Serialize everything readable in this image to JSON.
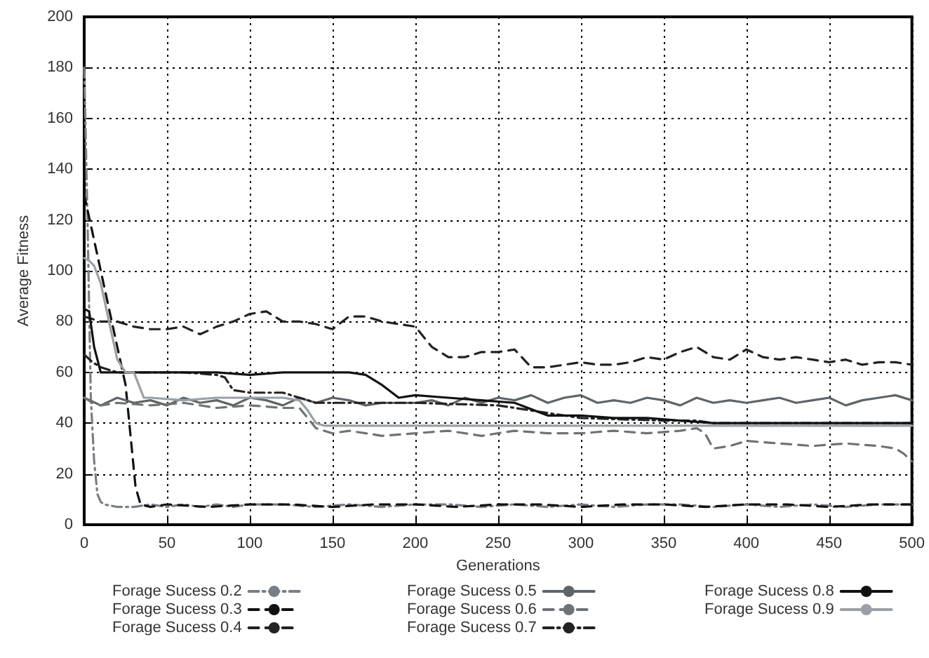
{
  "chart_data": {
    "type": "line",
    "xlabel": "Generations",
    "ylabel": "Average Fitness",
    "xlim": [
      0,
      500
    ],
    "xticks": [
      0,
      50,
      100,
      150,
      200,
      250,
      300,
      350,
      400,
      450,
      500
    ],
    "ylim": [
      0,
      200
    ],
    "yticks": [
      0,
      20,
      40,
      60,
      80,
      100,
      120,
      140,
      160,
      180,
      200
    ],
    "grid": true,
    "legend": "bottom",
    "marker": "none",
    "series": [
      {
        "name": "Forage Sucess 0.2",
        "color": "#7a7f85",
        "line_style": "dotted",
        "x": [
          0,
          2,
          4,
          6,
          8,
          10,
          12,
          20,
          30,
          40,
          50,
          60,
          70,
          80,
          90,
          100,
          120,
          140,
          160,
          180,
          200,
          220,
          240,
          260,
          280,
          300,
          320,
          340,
          360,
          380,
          400,
          420,
          440,
          460,
          480,
          500
        ],
        "values": [
          180,
          120,
          50,
          25,
          12,
          9,
          8,
          7,
          7,
          8,
          7,
          8,
          7,
          8,
          7,
          8,
          8,
          7,
          8,
          7,
          8,
          8,
          7,
          8,
          7,
          8,
          7,
          8,
          8,
          7,
          8,
          7,
          8,
          7,
          8,
          8
        ]
      },
      {
        "name": "Forage Sucess 0.3",
        "color": "#111111",
        "line_style": "dashed",
        "x": [
          0,
          5,
          10,
          15,
          20,
          25,
          28,
          31,
          34,
          40,
          50,
          75,
          100,
          125,
          150,
          175,
          200,
          225,
          250,
          275,
          300,
          325,
          350,
          375,
          400,
          425,
          450,
          475,
          500
        ],
        "values": [
          130,
          115,
          100,
          85,
          70,
          55,
          35,
          15,
          8,
          7,
          8,
          7,
          8,
          8,
          7,
          8,
          8,
          7,
          8,
          8,
          7,
          8,
          8,
          7,
          8,
          8,
          7,
          8,
          8
        ]
      },
      {
        "name": "Forage Sucess 0.4",
        "color": "#222222",
        "line_style": "dashed",
        "x": [
          0,
          10,
          20,
          30,
          40,
          50,
          60,
          70,
          80,
          90,
          100,
          110,
          120,
          130,
          140,
          150,
          160,
          170,
          180,
          190,
          200,
          210,
          220,
          230,
          240,
          250,
          260,
          270,
          280,
          290,
          300,
          310,
          320,
          330,
          340,
          350,
          360,
          370,
          380,
          390,
          400,
          410,
          420,
          430,
          440,
          450,
          460,
          470,
          480,
          490,
          500
        ],
        "values": [
          82,
          80,
          80,
          78,
          77,
          77,
          78,
          75,
          78,
          80,
          83,
          84,
          80,
          80,
          79,
          77,
          82,
          82,
          80,
          79,
          78,
          70,
          66,
          66,
          68,
          68,
          69,
          62,
          62,
          63,
          64,
          63,
          63,
          64,
          66,
          65,
          68,
          70,
          66,
          65,
          69,
          66,
          65,
          66,
          65,
          64,
          65,
          63,
          64,
          64,
          63
        ]
      },
      {
        "name": "Forage Sucess 0.5",
        "color": "#5f6468",
        "line_style": "solid",
        "x": [
          0,
          10,
          20,
          30,
          40,
          50,
          60,
          70,
          80,
          90,
          100,
          110,
          120,
          130,
          140,
          150,
          160,
          170,
          180,
          190,
          200,
          210,
          220,
          230,
          240,
          250,
          260,
          270,
          280,
          290,
          300,
          310,
          320,
          330,
          340,
          350,
          360,
          370,
          380,
          390,
          400,
          410,
          420,
          430,
          440,
          450,
          460,
          470,
          480,
          490,
          500
        ],
        "values": [
          50,
          47,
          50,
          48,
          49,
          47,
          50,
          48,
          49,
          47,
          50,
          49,
          47,
          50,
          48,
          50,
          49,
          47,
          48,
          48,
          48,
          49,
          47,
          50,
          48,
          50,
          49,
          51,
          48,
          50,
          51,
          48,
          49,
          48,
          50,
          49,
          47,
          50,
          48,
          49,
          48,
          49,
          50,
          48,
          49,
          50,
          47,
          49,
          50,
          51,
          49
        ]
      },
      {
        "name": "Forage Sucess 0.6",
        "color": "#6e7377",
        "line_style": "dashed",
        "x": [
          0,
          5,
          10,
          20,
          40,
          60,
          80,
          100,
          120,
          130,
          140,
          150,
          160,
          180,
          200,
          220,
          240,
          260,
          280,
          300,
          320,
          340,
          360,
          370,
          375,
          380,
          390,
          400,
          420,
          440,
          460,
          480,
          490,
          495,
          500
        ],
        "values": [
          50,
          48,
          47,
          48,
          47,
          48,
          46,
          47,
          46,
          46,
          38,
          36,
          37,
          35,
          36,
          37,
          35,
          37,
          36,
          36,
          37,
          36,
          37,
          38,
          36,
          30,
          31,
          33,
          32,
          31,
          32,
          31,
          30,
          28,
          25
        ]
      },
      {
        "name": "Forage Sucess 0.7",
        "color": "#222222",
        "line_style": "dotted",
        "x": [
          0,
          5,
          10,
          20,
          40,
          60,
          80,
          85,
          90,
          100,
          120,
          130,
          140,
          160,
          180,
          200,
          250,
          300,
          350,
          370,
          380,
          400,
          450,
          500
        ],
        "values": [
          67,
          64,
          62,
          60,
          60,
          60,
          59,
          58,
          53,
          52,
          52,
          50,
          48,
          48,
          48,
          48,
          47,
          42,
          41,
          41,
          40,
          40,
          40,
          40
        ]
      },
      {
        "name": "Forage Sucess 0.8",
        "color": "#111111",
        "line_style": "solid",
        "x": [
          0,
          3,
          6,
          10,
          20,
          40,
          60,
          80,
          100,
          120,
          140,
          160,
          170,
          180,
          190,
          200,
          220,
          240,
          260,
          280,
          300,
          320,
          340,
          360,
          380,
          400,
          450,
          500
        ],
        "values": [
          85,
          84,
          70,
          60,
          60,
          60,
          60,
          60,
          59,
          60,
          60,
          60,
          59,
          55,
          50,
          51,
          50,
          49,
          48,
          43,
          43,
          42,
          42,
          41,
          40,
          40,
          40,
          40
        ]
      },
      {
        "name": "Forage Sucess 0.9",
        "color": "#9aa0a5",
        "line_style": "solid",
        "x": [
          0,
          3,
          6,
          10,
          15,
          20,
          25,
          30,
          33,
          36,
          40,
          60,
          80,
          100,
          120,
          130,
          135,
          140,
          145,
          160,
          200,
          300,
          400,
          500
        ],
        "values": [
          105,
          104,
          102,
          95,
          80,
          65,
          60,
          60,
          55,
          50,
          50,
          49,
          50,
          50,
          50,
          49,
          45,
          40,
          39,
          39,
          39,
          39,
          39,
          39
        ]
      }
    ]
  }
}
